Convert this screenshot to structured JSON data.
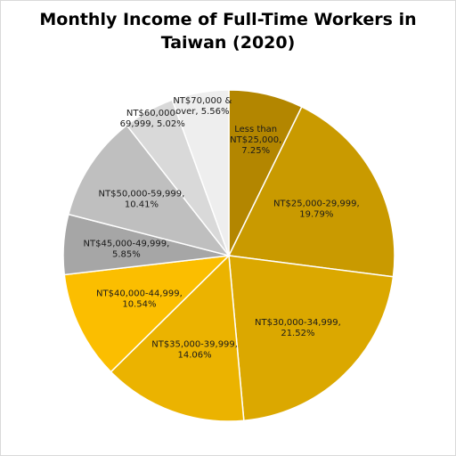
{
  "chart_data": {
    "type": "pie",
    "title_lines": [
      "Monthly Income of Full-Time Workers in",
      "Taiwan (2020)"
    ],
    "slices": [
      {
        "label_lines": [
          "Less than",
          "NT$25,000,",
          "7.25%"
        ],
        "value": 7.25,
        "color": "#b38600"
      },
      {
        "label_lines": [
          "NT$25,000-29,999,",
          "19.79%"
        ],
        "value": 19.79,
        "color": "#c99a00"
      },
      {
        "label_lines": [
          "NT$30,000-34,999,",
          "21.52%"
        ],
        "value": 21.52,
        "color": "#dba800"
      },
      {
        "label_lines": [
          "NT$35,000-39,999,",
          "14.06%"
        ],
        "value": 14.06,
        "color": "#ebb300"
      },
      {
        "label_lines": [
          "NT$40,000-44,999,",
          "10.54%"
        ],
        "value": 10.54,
        "color": "#fbbe00"
      },
      {
        "label_lines": [
          "NT$45,000-49,999,",
          "5.85%"
        ],
        "value": 5.85,
        "color": "#a6a6a6"
      },
      {
        "label_lines": [
          "NT$50,000-59,999,",
          "10.41%"
        ],
        "value": 10.41,
        "color": "#bfbfbf"
      },
      {
        "label_lines": [
          "NT$60,000-",
          "69,999, 5.02%"
        ],
        "value": 5.02,
        "color": "#d9d9d9"
      },
      {
        "label_lines": [
          "NT$70,000 &",
          "over, 5.56%"
        ],
        "value": 5.56,
        "color": "#eeeeee"
      }
    ]
  }
}
